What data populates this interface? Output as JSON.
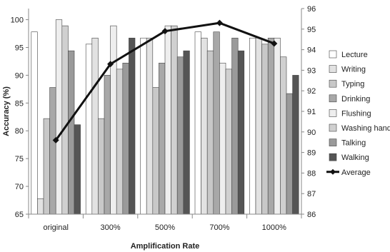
{
  "chart_data": {
    "type": "bar",
    "xlabel": "Amplification Rate",
    "ylabel": "Accuracy (%)",
    "categories": [
      "original",
      "300%",
      "500%",
      "700%",
      "1000%"
    ],
    "ylim": [
      65,
      102
    ],
    "y_ticks": [
      65,
      70,
      75,
      80,
      85,
      90,
      95,
      100
    ],
    "y2lim": [
      86,
      96
    ],
    "y2_ticks": [
      86,
      87,
      88,
      89,
      90,
      91,
      92,
      93,
      94,
      95,
      96
    ],
    "grid": false,
    "legend_position": "right",
    "series": [
      {
        "name": "Lecture",
        "color": "#ffffff",
        "values": [
          97.8,
          95.6,
          96.7,
          97.8,
          96.7
        ]
      },
      {
        "name": "Writing",
        "color": "#e2e2e2",
        "values": [
          67.8,
          96.7,
          96.7,
          96.7,
          96.7
        ]
      },
      {
        "name": "Typing",
        "color": "#c8c8c8",
        "values": [
          82.2,
          82.2,
          87.8,
          94.4,
          95.6
        ]
      },
      {
        "name": "Drinking",
        "color": "#a8a8a8",
        "values": [
          87.8,
          90.0,
          92.2,
          97.8,
          96.7
        ]
      },
      {
        "name": "Flushing",
        "color": "#eeeeee",
        "values": [
          100.0,
          98.9,
          98.9,
          92.2,
          96.7
        ]
      },
      {
        "name": "Washing hands",
        "color": "#d0d0d0",
        "values": [
          98.9,
          91.1,
          98.9,
          91.1,
          93.3
        ]
      },
      {
        "name": "Talking",
        "color": "#9a9a9a",
        "values": [
          94.4,
          92.2,
          93.3,
          96.7,
          86.7
        ]
      },
      {
        "name": "Walking",
        "color": "#555555",
        "values": [
          81.1,
          96.7,
          94.4,
          94.4,
          90.0
        ]
      }
    ],
    "line_series": {
      "name": "Average",
      "axis": "right",
      "color": "#111111",
      "values": [
        89.6,
        93.3,
        94.9,
        95.3,
        94.3
      ]
    }
  }
}
